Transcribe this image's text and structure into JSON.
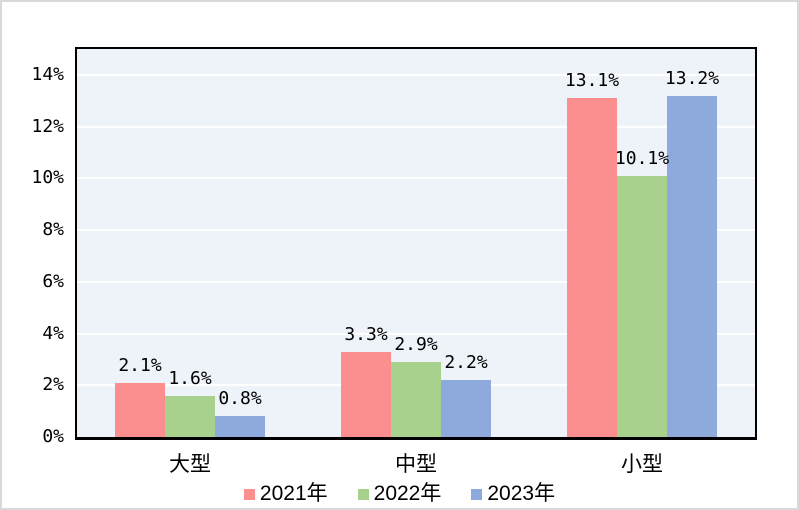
{
  "chart_data": {
    "type": "bar",
    "title": "",
    "xlabel": "",
    "ylabel": "",
    "categories": [
      "大型",
      "中型",
      "小型"
    ],
    "series": [
      {
        "name": "2021年",
        "color": "#FB8E8E",
        "values": [
          2.1,
          3.3,
          13.1
        ],
        "labels": [
          "2.1%",
          "3.3%",
          "13.1%"
        ]
      },
      {
        "name": "2022年",
        "color": "#A7D18D",
        "values": [
          1.6,
          2.9,
          10.1
        ],
        "labels": [
          "1.6%",
          "2.9%",
          "10.1%"
        ]
      },
      {
        "name": "2023年",
        "color": "#8EA9DB",
        "values": [
          0.8,
          2.2,
          13.2
        ],
        "labels": [
          "0.8%",
          "2.2%",
          "13.2%"
        ]
      }
    ],
    "ylim": [
      0,
      15
    ],
    "yticks": [
      0,
      2,
      4,
      6,
      8,
      10,
      12,
      14
    ],
    "ytick_labels": [
      "0%",
      "2%",
      "4%",
      "6%",
      "8%",
      "10%",
      "12%",
      "14%"
    ],
    "grid": true,
    "legend_position": "bottom",
    "colors": {
      "plot_background": "#EDF3F8",
      "gridline": "#FFFFFF",
      "axis_border": "#000000",
      "outer_border": "#D9D9D9",
      "text": "#000000"
    }
  }
}
